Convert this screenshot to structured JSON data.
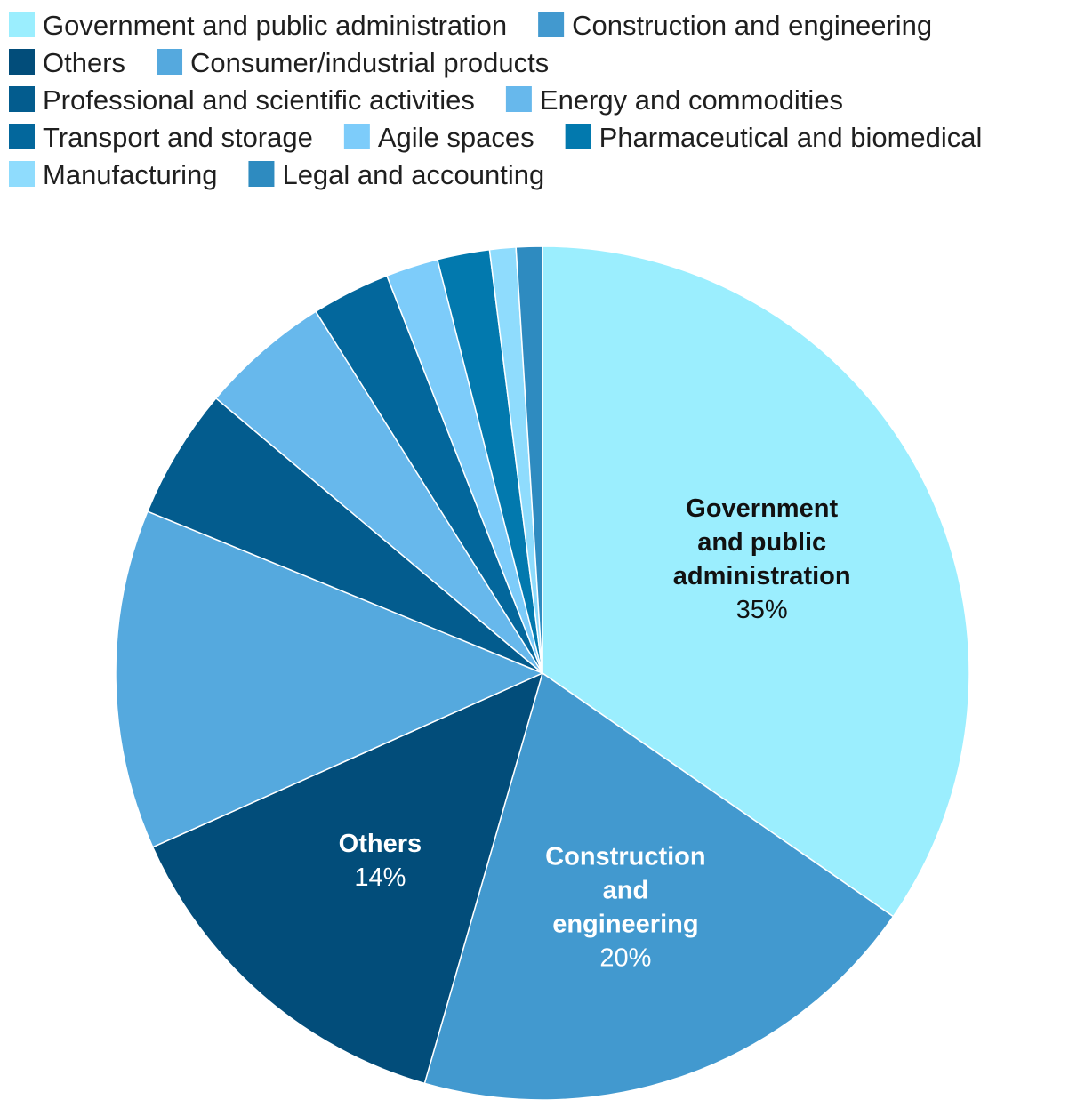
{
  "chart_data": {
    "type": "pie",
    "start_angle_deg": 0,
    "direction": "clockwise",
    "legend_position": "top",
    "slices": [
      {
        "name": "Government and public administration",
        "value": 35,
        "color": "#9beefe",
        "label_lines": [
          "Government",
          "and public",
          "administration"
        ],
        "value_label": "35%",
        "label_color": "#111111"
      },
      {
        "name": "Construction and engineering",
        "value": 20,
        "color": "#4299cf",
        "label_lines": [
          "Construction",
          "and",
          "engineering"
        ],
        "value_label": "20%",
        "label_color": "#ffffff"
      },
      {
        "name": "Others",
        "value": 14,
        "color": "#024d7a",
        "label_lines": [
          "Others"
        ],
        "value_label": "14%",
        "label_color": "#ffffff"
      },
      {
        "name": "Consumer/industrial products",
        "value": 13,
        "color": "#55a9de",
        "label_lines": [],
        "value_label": ""
      },
      {
        "name": "Professional and scientific activities",
        "value": 5,
        "color": "#035c8e",
        "label_lines": [],
        "value_label": ""
      },
      {
        "name": "Energy and commodities",
        "value": 5,
        "color": "#67b8ec",
        "label_lines": [],
        "value_label": ""
      },
      {
        "name": "Transport and storage",
        "value": 3,
        "color": "#03679c",
        "label_lines": [],
        "value_label": ""
      },
      {
        "name": "Agile spaces",
        "value": 2,
        "color": "#7dccfa",
        "label_lines": [],
        "value_label": ""
      },
      {
        "name": "Pharmaceutical and biomedical",
        "value": 2,
        "color": "#0279ae",
        "label_lines": [],
        "value_label": ""
      },
      {
        "name": "Manufacturing",
        "value": 1,
        "color": "#8fdcfd",
        "label_lines": [],
        "value_label": ""
      },
      {
        "name": "Legal and accounting",
        "value": 1,
        "color": "#2e8bc0",
        "label_lines": [],
        "value_label": ""
      }
    ]
  }
}
